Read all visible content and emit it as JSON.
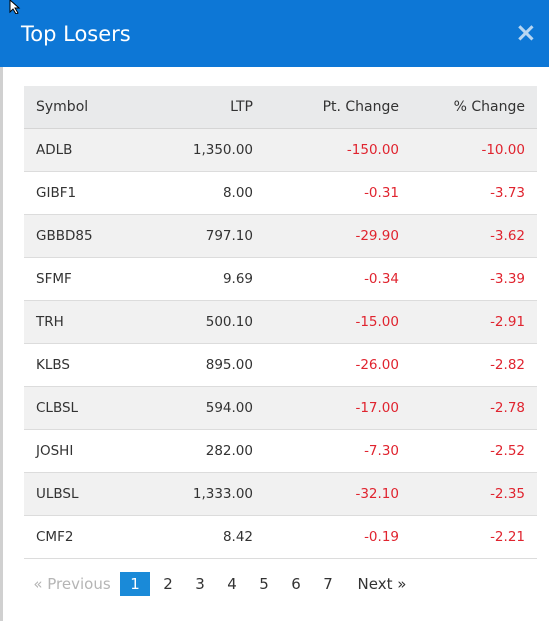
{
  "modal": {
    "title": "Top Losers",
    "close_icon": "×"
  },
  "table": {
    "headers": [
      "Symbol",
      "LTP",
      "Pt. Change",
      "% Change"
    ],
    "rows": [
      {
        "symbol": "ADLB",
        "ltp": "1,350.00",
        "pt_change": "-150.00",
        "pct_change": "-10.00"
      },
      {
        "symbol": "GIBF1",
        "ltp": "8.00",
        "pt_change": "-0.31",
        "pct_change": "-3.73"
      },
      {
        "symbol": "GBBD85",
        "ltp": "797.10",
        "pt_change": "-29.90",
        "pct_change": "-3.62"
      },
      {
        "symbol": "SFMF",
        "ltp": "9.69",
        "pt_change": "-0.34",
        "pct_change": "-3.39"
      },
      {
        "symbol": "TRH",
        "ltp": "500.10",
        "pt_change": "-15.00",
        "pct_change": "-2.91"
      },
      {
        "symbol": "KLBS",
        "ltp": "895.00",
        "pt_change": "-26.00",
        "pct_change": "-2.82"
      },
      {
        "symbol": "CLBSL",
        "ltp": "594.00",
        "pt_change": "-17.00",
        "pct_change": "-2.78"
      },
      {
        "symbol": "JOSHI",
        "ltp": "282.00",
        "pt_change": "-7.30",
        "pct_change": "-2.52"
      },
      {
        "symbol": "ULBSL",
        "ltp": "1,333.00",
        "pt_change": "-32.10",
        "pct_change": "-2.35"
      },
      {
        "symbol": "CMF2",
        "ltp": "8.42",
        "pt_change": "-0.19",
        "pct_change": "-2.21"
      }
    ]
  },
  "pagination": {
    "prev_label": "«  Previous",
    "next_label": "Next  »",
    "pages": [
      "1",
      "2",
      "3",
      "4",
      "5",
      "6",
      "7"
    ],
    "current_page": "1"
  },
  "colors": {
    "header_bg": "#0d77d6",
    "negative": "#e0242f",
    "active_page": "#1a8ad8"
  }
}
